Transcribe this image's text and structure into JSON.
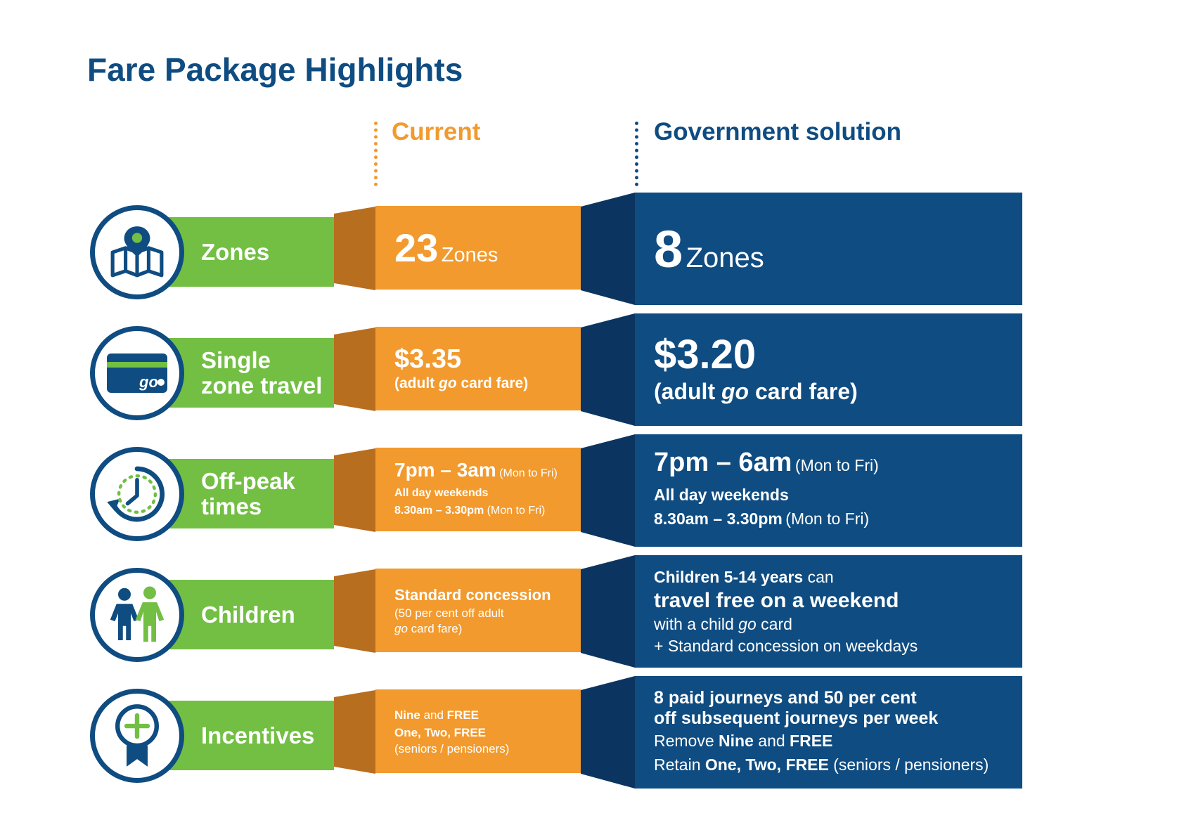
{
  "title": "Fare Package Highlights",
  "columns": {
    "current": "Current",
    "government": "Government solution"
  },
  "colors": {
    "green": "#72bf44",
    "orange": "#f29a2e",
    "orange_dark": "#b86e1f",
    "navy": "#0f4c81",
    "navy_dark": "#0b3560"
  },
  "rows": [
    {
      "label": "Zones",
      "icon": "map-pin-icon",
      "current": {
        "number": "23",
        "unit": "Zones"
      },
      "government": {
        "number": "8",
        "unit": "Zones"
      }
    },
    {
      "label": "Single\nzone travel",
      "icon": "go-card-icon",
      "icon_text": "go",
      "current": {
        "price": "$3.35",
        "note_a": "(adult ",
        "note_go": "go",
        "note_b": " card fare)"
      },
      "government": {
        "price": "$3.20",
        "note_a": "(adult ",
        "note_go": "go",
        "note_b": " card fare)"
      }
    },
    {
      "label": "Off-peak\ntimes",
      "icon": "clock-arrow-icon",
      "current": {
        "time": "7pm – 3am",
        "days": "(Mon to Fri)",
        "weekend": "All day weekends",
        "midday": "8.30am – 3.30pm",
        "midday_days": "(Mon to Fri)"
      },
      "government": {
        "time": "7pm – 6am",
        "days": "(Mon to Fri)",
        "weekend": "All day weekends",
        "midday": "8.30am – 3.30pm",
        "midday_days": "(Mon to Fri)"
      }
    },
    {
      "label": "Children",
      "icon": "children-icon",
      "current": {
        "line1": "Standard concession",
        "line2": "(50 per cent off adult",
        "line3_go": "go",
        "line3_rest": " card fare)"
      },
      "government": {
        "line1_bold": "Children 5-14 years",
        "line1_rest": " can",
        "line2": "travel free on a weekend",
        "line3_a": "with a child ",
        "line3_go": "go",
        "line3_b": " card",
        "line4": "+ Standard concession on weekdays"
      }
    },
    {
      "label": "Incentives",
      "icon": "award-ribbon-icon",
      "current": {
        "l1_bold": "Nine",
        "l1_and": " and ",
        "l1_free": "FREE",
        "l2": "One, Two, FREE",
        "l3": "(seniors / pensioners)"
      },
      "government": {
        "l1": "8 paid journeys and 50 per cent",
        "l2": "off subsequent journeys per week",
        "l3_a": "Remove ",
        "l3_nine": "Nine",
        "l3_and": " and ",
        "l3_free": "FREE",
        "l4_a": "Retain ",
        "l4_bold": "One, Two, FREE",
        "l4_rest": " (seniors / pensioners)"
      }
    }
  ]
}
